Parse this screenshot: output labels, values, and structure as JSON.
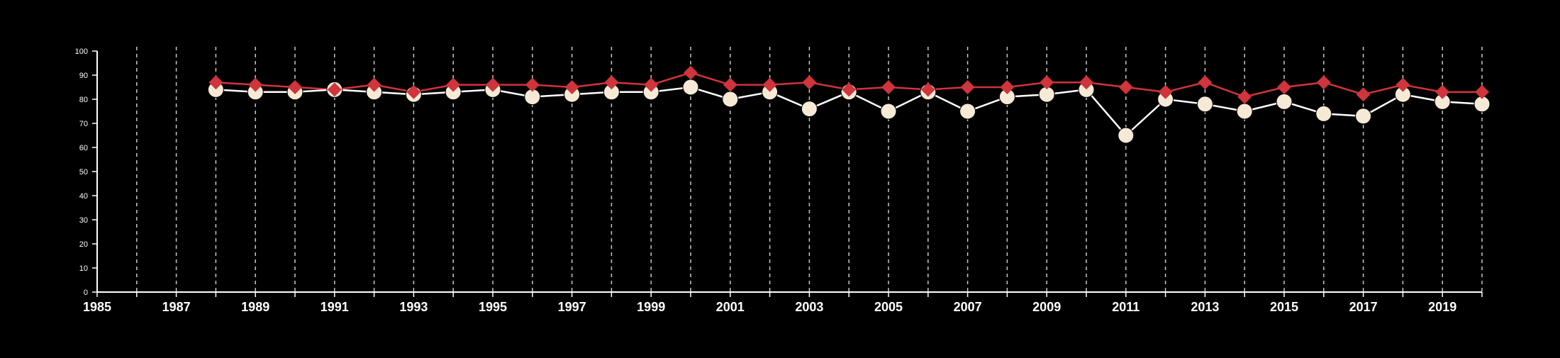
{
  "colors": {
    "background": "#000000",
    "axis": "#ffffff",
    "grid": "#c8c8c8",
    "series_red": "#d0343c",
    "series_cream_fill": "#f6ead6",
    "series_cream_line": "#ffffff"
  },
  "chart_data": {
    "type": "line",
    "title": "",
    "xlabel": "",
    "ylabel": "",
    "xlim": [
      1985,
      2020
    ],
    "ylim": [
      0,
      100
    ],
    "grid": "vertical dashed at each year",
    "legend": "none",
    "x_ticks": [
      1985,
      1987,
      1989,
      1991,
      1993,
      1995,
      1997,
      1999,
      2001,
      2003,
      2005,
      2007,
      2009,
      2011,
      2013,
      2015,
      2017,
      2019
    ],
    "y_ticks": [
      0,
      10,
      20,
      30,
      40,
      50,
      60,
      70,
      80,
      90,
      100
    ],
    "x": [
      1988,
      1989,
      1990,
      1991,
      1992,
      1993,
      1994,
      1995,
      1996,
      1997,
      1998,
      1999,
      2000,
      2001,
      2002,
      2003,
      2004,
      2005,
      2006,
      2007,
      2008,
      2009,
      2010,
      2011,
      2012,
      2013,
      2014,
      2015,
      2016,
      2017,
      2018,
      2019,
      2020
    ],
    "series": [
      {
        "marker": "diamond",
        "color": "#d0343c",
        "values": [
          87,
          86,
          85,
          84,
          86,
          83,
          86,
          86,
          86,
          85,
          87,
          86,
          91,
          86,
          86,
          87,
          84,
          85,
          84,
          85,
          85,
          87,
          87,
          85,
          83,
          87,
          81,
          85,
          87,
          82,
          86,
          83,
          83
        ]
      },
      {
        "marker": "circle",
        "color": "#f6ead6",
        "values": [
          84,
          83,
          83,
          84,
          83,
          82,
          83,
          84,
          81,
          82,
          83,
          83,
          85,
          80,
          83,
          76,
          83,
          75,
          83,
          75,
          81,
          82,
          84,
          65,
          80,
          78,
          75,
          79,
          74,
          73,
          82,
          79,
          78
        ]
      }
    ]
  }
}
